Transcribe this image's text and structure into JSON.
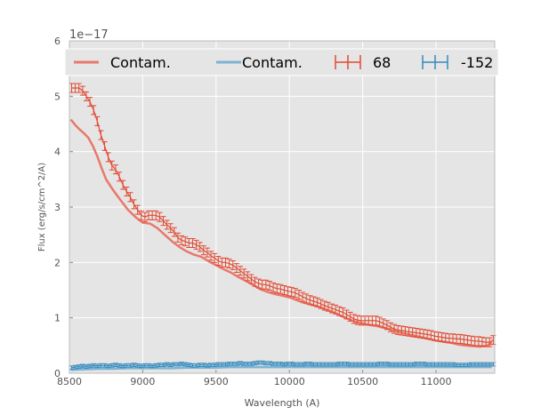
{
  "chart_data": {
    "type": "line",
    "title": "",
    "xlabel": "Wavelength (A)",
    "ylabel": "Flux (erg/s/cm^2/A)",
    "scale_label": "1e−17",
    "xlim": [
      8500,
      11400
    ],
    "ylim": [
      0,
      6
    ],
    "xticks": [
      "8500",
      "9000",
      "9500",
      "10000",
      "10500",
      "11000"
    ],
    "yticks": [
      "0",
      "1",
      "2",
      "3",
      "4",
      "5",
      "6"
    ],
    "grid": true,
    "legend_position": "top",
    "legend": [
      "Contam.",
      "Contam.",
      "68",
      "-152"
    ],
    "colors": {
      "red": "#e24a33",
      "red_contam": "#e8786a",
      "blue": "#348abd",
      "blue_contam": "#7fb3d5",
      "background": "#e5e5e5"
    },
    "series": [
      {
        "name": "Contam.",
        "kind": "contam",
        "color": "red_contam",
        "x": [
          8510,
          8540,
          8570,
          8600,
          8630,
          8660,
          8690,
          8720,
          8750,
          8800,
          8850,
          8900,
          8950,
          9000,
          9050,
          9100,
          9150,
          9200,
          9250,
          9300,
          9350,
          9400,
          9450,
          9500,
          9550,
          9600,
          9650,
          9700,
          9750,
          9800,
          9850,
          9900,
          9950,
          10000,
          10050,
          10100,
          10150,
          10200,
          10250,
          10300,
          10350,
          10400,
          10450,
          10500,
          10550,
          10600,
          10650,
          10700,
          10750,
          10800,
          10850,
          10900,
          10950,
          11000,
          11050,
          11100,
          11150,
          11200,
          11250,
          11300,
          11350,
          11380
        ],
        "y": [
          4.58,
          4.48,
          4.4,
          4.33,
          4.25,
          4.1,
          3.92,
          3.7,
          3.5,
          3.3,
          3.12,
          2.95,
          2.82,
          2.72,
          2.7,
          2.62,
          2.5,
          2.38,
          2.28,
          2.2,
          2.14,
          2.1,
          2.02,
          1.95,
          1.88,
          1.82,
          1.74,
          1.67,
          1.6,
          1.52,
          1.47,
          1.43,
          1.4,
          1.37,
          1.32,
          1.27,
          1.24,
          1.2,
          1.15,
          1.1,
          1.04,
          0.98,
          0.93,
          0.9,
          0.87,
          0.85,
          0.82,
          0.78,
          0.74,
          0.71,
          0.68,
          0.65,
          0.62,
          0.59,
          0.57,
          0.55,
          0.52,
          0.5,
          0.49,
          0.48,
          0.5,
          0.56
        ]
      },
      {
        "name": "Contam.",
        "kind": "contam",
        "color": "blue_contam",
        "x": [
          8510,
          8600,
          8700,
          8800,
          8900,
          9000,
          9100,
          9200,
          9300,
          9400,
          9500,
          9600,
          9700,
          9800,
          9900,
          10000,
          10100,
          10200,
          10300,
          10400,
          10500,
          10600,
          10700,
          10800,
          10900,
          11000,
          11100,
          11200,
          11300,
          11380
        ],
        "y": [
          0.06,
          0.07,
          0.08,
          0.08,
          0.09,
          0.09,
          0.09,
          0.09,
          0.1,
          0.1,
          0.1,
          0.11,
          0.11,
          0.11,
          0.11,
          0.11,
          0.11,
          0.11,
          0.11,
          0.11,
          0.11,
          0.11,
          0.11,
          0.11,
          0.11,
          0.11,
          0.11,
          0.11,
          0.11,
          0.11
        ]
      },
      {
        "name": "68",
        "kind": "errorbar",
        "color": "red",
        "x": [
          8515,
          8540,
          8565,
          8590,
          8615,
          8640,
          8665,
          8690,
          8715,
          8740,
          8765,
          8790,
          8815,
          8840,
          8865,
          8890,
          8915,
          8940,
          8965,
          8990,
          9015,
          9040,
          9065,
          9090,
          9115,
          9140,
          9165,
          9190,
          9215,
          9240,
          9265,
          9290,
          9315,
          9340,
          9365,
          9390,
          9415,
          9440,
          9465,
          9490,
          9515,
          9540,
          9565,
          9590,
          9615,
          9640,
          9665,
          9690,
          9715,
          9740,
          9765,
          9790,
          9815,
          9840,
          9865,
          9890,
          9915,
          9940,
          9965,
          9990,
          10015,
          10040,
          10065,
          10090,
          10115,
          10140,
          10165,
          10190,
          10215,
          10240,
          10265,
          10290,
          10315,
          10340,
          10365,
          10390,
          10415,
          10440,
          10465,
          10490,
          10515,
          10540,
          10565,
          10590,
          10615,
          10640,
          10665,
          10690,
          10715,
          10740,
          10765,
          10790,
          10815,
          10840,
          10865,
          10890,
          10915,
          10940,
          10965,
          10990,
          11015,
          11040,
          11065,
          11090,
          11115,
          11140,
          11165,
          11190,
          11215,
          11240,
          11265,
          11290,
          11315,
          11340,
          11365,
          11390
        ],
        "y": [
          5.15,
          5.15,
          5.15,
          5.1,
          5.0,
          4.9,
          4.75,
          4.55,
          4.3,
          4.1,
          3.9,
          3.75,
          3.68,
          3.55,
          3.4,
          3.28,
          3.18,
          3.05,
          2.95,
          2.85,
          2.82,
          2.85,
          2.85,
          2.85,
          2.82,
          2.75,
          2.68,
          2.62,
          2.55,
          2.45,
          2.4,
          2.38,
          2.35,
          2.35,
          2.32,
          2.28,
          2.22,
          2.18,
          2.12,
          2.08,
          2.03,
          2.0,
          2.0,
          1.98,
          1.95,
          1.9,
          1.85,
          1.8,
          1.75,
          1.7,
          1.65,
          1.62,
          1.6,
          1.6,
          1.58,
          1.55,
          1.53,
          1.52,
          1.5,
          1.48,
          1.47,
          1.45,
          1.42,
          1.38,
          1.35,
          1.32,
          1.3,
          1.28,
          1.25,
          1.22,
          1.2,
          1.17,
          1.15,
          1.12,
          1.1,
          1.06,
          1.02,
          0.98,
          0.96,
          0.95,
          0.95,
          0.95,
          0.95,
          0.95,
          0.93,
          0.9,
          0.87,
          0.83,
          0.8,
          0.78,
          0.77,
          0.76,
          0.75,
          0.74,
          0.73,
          0.72,
          0.71,
          0.7,
          0.69,
          0.67,
          0.66,
          0.65,
          0.64,
          0.63,
          0.63,
          0.62,
          0.62,
          0.61,
          0.6,
          0.59,
          0.58,
          0.58,
          0.57,
          0.56,
          0.56,
          0.6
        ],
        "err": 0.08
      },
      {
        "name": "-152",
        "kind": "errorbar",
        "color": "blue",
        "x": [
          8515,
          8540,
          8565,
          8590,
          8615,
          8640,
          8665,
          8690,
          8715,
          8740,
          8765,
          8790,
          8815,
          8840,
          8865,
          8890,
          8915,
          8940,
          8965,
          8990,
          9015,
          9040,
          9065,
          9090,
          9115,
          9140,
          9165,
          9190,
          9215,
          9240,
          9265,
          9290,
          9315,
          9340,
          9365,
          9390,
          9415,
          9440,
          9465,
          9490,
          9515,
          9540,
          9565,
          9590,
          9615,
          9640,
          9665,
          9690,
          9715,
          9740,
          9765,
          9790,
          9815,
          9840,
          9865,
          9890,
          9915,
          9940,
          9965,
          9990,
          10015,
          10040,
          10065,
          10090,
          10115,
          10140,
          10165,
          10190,
          10215,
          10240,
          10265,
          10290,
          10315,
          10340,
          10365,
          10390,
          10415,
          10440,
          10465,
          10490,
          10515,
          10540,
          10565,
          10590,
          10615,
          10640,
          10665,
          10690,
          10715,
          10740,
          10765,
          10790,
          10815,
          10840,
          10865,
          10890,
          10915,
          10940,
          10965,
          10990,
          11015,
          11040,
          11065,
          11090,
          11115,
          11140,
          11165,
          11190,
          11215,
          11240,
          11265,
          11290,
          11315,
          11340,
          11365,
          11390
        ],
        "y": [
          0.1,
          0.11,
          0.12,
          0.13,
          0.12,
          0.13,
          0.14,
          0.13,
          0.14,
          0.14,
          0.13,
          0.14,
          0.15,
          0.14,
          0.13,
          0.14,
          0.14,
          0.15,
          0.14,
          0.13,
          0.14,
          0.14,
          0.13,
          0.14,
          0.15,
          0.15,
          0.16,
          0.15,
          0.16,
          0.16,
          0.17,
          0.16,
          0.15,
          0.14,
          0.14,
          0.15,
          0.15,
          0.14,
          0.15,
          0.15,
          0.16,
          0.16,
          0.16,
          0.17,
          0.17,
          0.17,
          0.18,
          0.17,
          0.17,
          0.17,
          0.18,
          0.19,
          0.19,
          0.18,
          0.18,
          0.17,
          0.17,
          0.17,
          0.16,
          0.17,
          0.17,
          0.16,
          0.16,
          0.16,
          0.17,
          0.17,
          0.16,
          0.16,
          0.16,
          0.16,
          0.16,
          0.16,
          0.16,
          0.17,
          0.17,
          0.17,
          0.16,
          0.16,
          0.16,
          0.16,
          0.16,
          0.16,
          0.16,
          0.16,
          0.17,
          0.17,
          0.17,
          0.16,
          0.16,
          0.16,
          0.16,
          0.16,
          0.16,
          0.16,
          0.17,
          0.17,
          0.17,
          0.16,
          0.16,
          0.16,
          0.16,
          0.16,
          0.16,
          0.16,
          0.16,
          0.15,
          0.15,
          0.15,
          0.15,
          0.16,
          0.16,
          0.16,
          0.16,
          0.16,
          0.16,
          0.16
        ],
        "err": 0.03
      }
    ]
  }
}
